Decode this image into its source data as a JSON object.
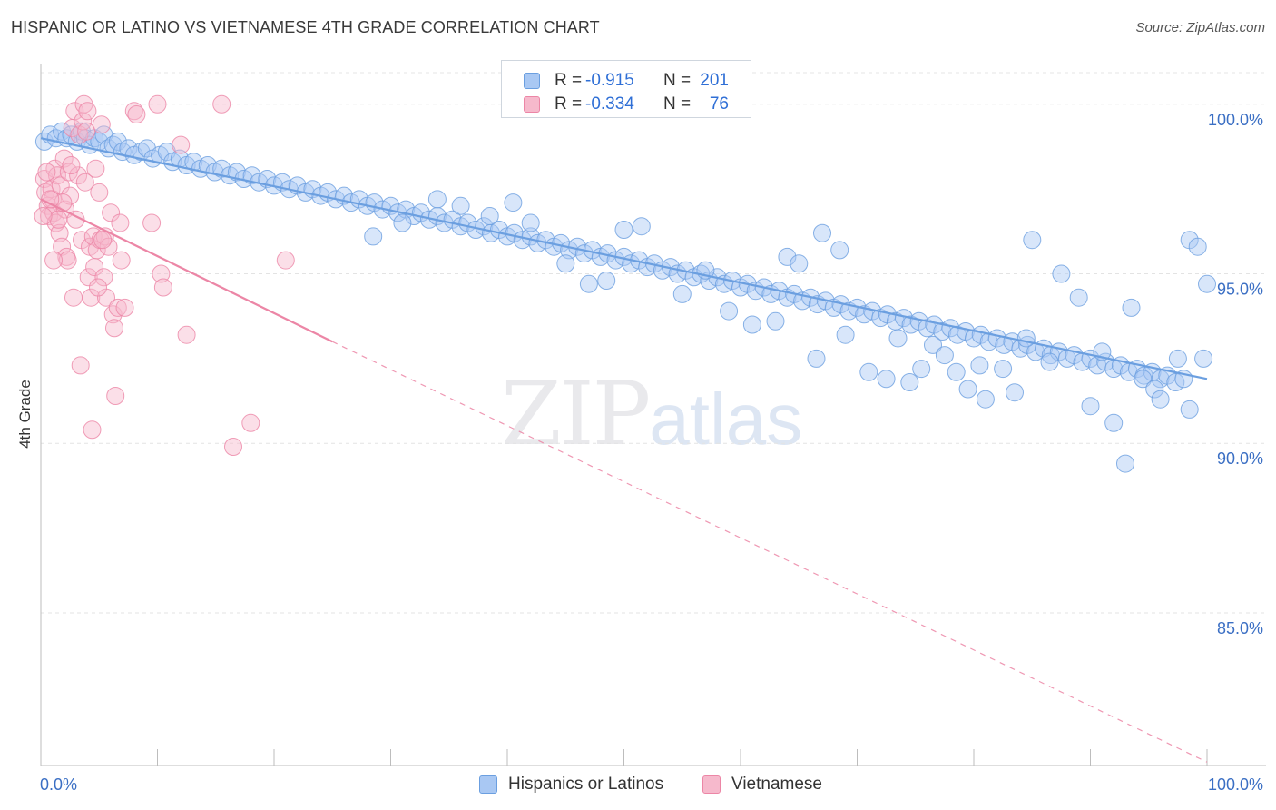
{
  "header": {
    "title": "HISPANIC OR LATINO VS VIETNAMESE 4TH GRADE CORRELATION CHART",
    "source": "Source: ZipAtlas.com"
  },
  "watermark": {
    "zip": "ZIP",
    "atlas": "atlas"
  },
  "legend": {
    "rows": [
      {
        "r_label": "R =",
        "r_value": "-0.915",
        "n_label": "N =",
        "n_value": "201",
        "color": "#a9c8f3",
        "stroke": "#6b9fe0"
      },
      {
        "r_label": "R =",
        "r_value": "-0.334",
        "n_label": "N =",
        "n_value": "76",
        "color": "#f6b9cc",
        "stroke": "#ec86a6"
      }
    ]
  },
  "bottom_legend": [
    {
      "label": "Hispanics or Latinos",
      "color": "#a9c8f3",
      "stroke": "#6b9fe0"
    },
    {
      "label": "Vietnamese",
      "color": "#f6b9cc",
      "stroke": "#ec86a6"
    }
  ],
  "chart_data": {
    "type": "scatter",
    "title": "HISPANIC OR LATINO VS VIETNAMESE 4TH GRADE CORRELATION CHART",
    "xlabel": "",
    "ylabel": "4th Grade",
    "xlim": [
      0,
      100
    ],
    "ylim": [
      80.5,
      101.2
    ],
    "x_tick_labels": [
      "0.0%",
      "100.0%"
    ],
    "y_ticks": [
      85,
      90,
      95,
      100
    ],
    "y_tick_labels": [
      "85.0%",
      "90.0%",
      "95.0%",
      "100.0%"
    ],
    "grid": true,
    "series": [
      {
        "name": "Hispanics or Latinos",
        "color": "#6b9fe0",
        "fill": "#a9c8f3",
        "trend": {
          "x": [
            0,
            100
          ],
          "y": [
            99.0,
            91.9
          ],
          "dashed_to": null
        },
        "points": [
          [
            0.3,
            98.9
          ],
          [
            0.8,
            99.1
          ],
          [
            1.3,
            99.0
          ],
          [
            1.8,
            99.2
          ],
          [
            2.2,
            99.0
          ],
          [
            2.6,
            99.1
          ],
          [
            3.1,
            98.9
          ],
          [
            3.5,
            99.2
          ],
          [
            3.8,
            99.0
          ],
          [
            4.2,
            98.8
          ],
          [
            4.6,
            99.0
          ],
          [
            5.0,
            98.9
          ],
          [
            5.4,
            99.1
          ],
          [
            5.8,
            98.7
          ],
          [
            6.2,
            98.8
          ],
          [
            6.6,
            98.9
          ],
          [
            7.0,
            98.6
          ],
          [
            7.5,
            98.7
          ],
          [
            8.0,
            98.5
          ],
          [
            8.6,
            98.6
          ],
          [
            9.1,
            98.7
          ],
          [
            9.6,
            98.4
          ],
          [
            10.2,
            98.5
          ],
          [
            10.8,
            98.6
          ],
          [
            11.3,
            98.3
          ],
          [
            11.9,
            98.4
          ],
          [
            12.5,
            98.2
          ],
          [
            13.1,
            98.3
          ],
          [
            13.7,
            98.1
          ],
          [
            14.3,
            98.2
          ],
          [
            14.9,
            98.0
          ],
          [
            15.5,
            98.1
          ],
          [
            16.2,
            97.9
          ],
          [
            16.8,
            98.0
          ],
          [
            17.4,
            97.8
          ],
          [
            18.1,
            97.9
          ],
          [
            18.7,
            97.7
          ],
          [
            19.4,
            97.8
          ],
          [
            20.0,
            97.6
          ],
          [
            20.7,
            97.7
          ],
          [
            21.3,
            97.5
          ],
          [
            22.0,
            97.6
          ],
          [
            22.7,
            97.4
          ],
          [
            23.3,
            97.5
          ],
          [
            24.0,
            97.3
          ],
          [
            24.6,
            97.4
          ],
          [
            25.3,
            97.2
          ],
          [
            26.0,
            97.3
          ],
          [
            26.6,
            97.1
          ],
          [
            27.3,
            97.2
          ],
          [
            28.0,
            97.0
          ],
          [
            28.6,
            97.1
          ],
          [
            29.3,
            96.9
          ],
          [
            30.0,
            97.0
          ],
          [
            30.6,
            96.8
          ],
          [
            31.3,
            96.9
          ],
          [
            32.0,
            96.7
          ],
          [
            32.6,
            96.8
          ],
          [
            33.3,
            96.6
          ],
          [
            34.0,
            96.7
          ],
          [
            34.6,
            96.5
          ],
          [
            35.3,
            96.6
          ],
          [
            36.0,
            96.4
          ],
          [
            36.6,
            96.5
          ],
          [
            37.3,
            96.3
          ],
          [
            38.0,
            96.4
          ],
          [
            38.6,
            96.2
          ],
          [
            39.3,
            96.3
          ],
          [
            40.0,
            96.1
          ],
          [
            40.6,
            96.2
          ],
          [
            41.3,
            96.0
          ],
          [
            42.0,
            96.1
          ],
          [
            42.6,
            95.9
          ],
          [
            43.3,
            96.0
          ],
          [
            44.0,
            95.8
          ],
          [
            44.6,
            95.9
          ],
          [
            45.3,
            95.7
          ],
          [
            46.0,
            95.8
          ],
          [
            46.6,
            95.6
          ],
          [
            47.3,
            95.7
          ],
          [
            48.0,
            95.5
          ],
          [
            48.6,
            95.6
          ],
          [
            49.3,
            95.4
          ],
          [
            50.0,
            95.5
          ],
          [
            50.6,
            95.3
          ],
          [
            51.3,
            95.4
          ],
          [
            52.0,
            95.2
          ],
          [
            52.6,
            95.3
          ],
          [
            53.3,
            95.1
          ],
          [
            54.0,
            95.2
          ],
          [
            54.6,
            95.0
          ],
          [
            55.3,
            95.1
          ],
          [
            56.0,
            94.9
          ],
          [
            56.6,
            95.0
          ],
          [
            57.3,
            94.8
          ],
          [
            58.0,
            94.9
          ],
          [
            58.6,
            94.7
          ],
          [
            59.3,
            94.8
          ],
          [
            60.0,
            94.6
          ],
          [
            60.6,
            94.7
          ],
          [
            61.3,
            94.5
          ],
          [
            62.0,
            94.6
          ],
          [
            62.6,
            94.4
          ],
          [
            63.3,
            94.5
          ],
          [
            64.0,
            94.3
          ],
          [
            64.6,
            94.4
          ],
          [
            65.3,
            94.2
          ],
          [
            66.0,
            94.3
          ],
          [
            66.6,
            94.1
          ],
          [
            67.3,
            94.2
          ],
          [
            68.0,
            94.0
          ],
          [
            68.6,
            94.1
          ],
          [
            69.3,
            93.9
          ],
          [
            70.0,
            94.0
          ],
          [
            70.6,
            93.8
          ],
          [
            71.3,
            93.9
          ],
          [
            72.0,
            93.7
          ],
          [
            72.6,
            93.8
          ],
          [
            73.3,
            93.6
          ],
          [
            74.0,
            93.7
          ],
          [
            74.6,
            93.5
          ],
          [
            75.3,
            93.6
          ],
          [
            76.0,
            93.4
          ],
          [
            76.6,
            93.5
          ],
          [
            77.3,
            93.3
          ],
          [
            78.0,
            93.4
          ],
          [
            78.6,
            93.2
          ],
          [
            79.3,
            93.3
          ],
          [
            80.0,
            93.1
          ],
          [
            80.6,
            93.2
          ],
          [
            81.3,
            93.0
          ],
          [
            82.0,
            93.1
          ],
          [
            82.6,
            92.9
          ],
          [
            83.3,
            93.0
          ],
          [
            84.0,
            92.8
          ],
          [
            84.6,
            92.9
          ],
          [
            85.3,
            92.7
          ],
          [
            86.0,
            92.8
          ],
          [
            86.6,
            92.6
          ],
          [
            87.3,
            92.7
          ],
          [
            88.0,
            92.5
          ],
          [
            88.6,
            92.6
          ],
          [
            89.3,
            92.4
          ],
          [
            90.0,
            92.5
          ],
          [
            90.6,
            92.3
          ],
          [
            91.3,
            92.4
          ],
          [
            92.0,
            92.2
          ],
          [
            92.6,
            92.3
          ],
          [
            93.3,
            92.1
          ],
          [
            94.0,
            92.2
          ],
          [
            94.6,
            92.0
          ],
          [
            95.3,
            92.1
          ],
          [
            96.0,
            91.9
          ],
          [
            96.6,
            92.0
          ],
          [
            97.3,
            91.8
          ],
          [
            98.0,
            91.9
          ],
          [
            28.5,
            96.1
          ],
          [
            31.0,
            96.5
          ],
          [
            34.0,
            97.2
          ],
          [
            36.0,
            97.0
          ],
          [
            38.5,
            96.7
          ],
          [
            40.5,
            97.1
          ],
          [
            42.0,
            96.5
          ],
          [
            45.0,
            95.3
          ],
          [
            47.0,
            94.7
          ],
          [
            48.5,
            94.8
          ],
          [
            50.0,
            96.3
          ],
          [
            51.5,
            96.4
          ],
          [
            55.0,
            94.4
          ],
          [
            57.0,
            95.1
          ],
          [
            59.0,
            93.9
          ],
          [
            61.0,
            93.5
          ],
          [
            63.0,
            93.6
          ],
          [
            64.0,
            95.5
          ],
          [
            65.0,
            95.3
          ],
          [
            66.5,
            92.5
          ],
          [
            67.0,
            96.2
          ],
          [
            68.5,
            95.7
          ],
          [
            69.0,
            93.2
          ],
          [
            71.0,
            92.1
          ],
          [
            72.5,
            91.9
          ],
          [
            73.5,
            93.1
          ],
          [
            74.5,
            91.8
          ],
          [
            75.5,
            92.2
          ],
          [
            76.5,
            92.9
          ],
          [
            77.5,
            92.6
          ],
          [
            78.5,
            92.1
          ],
          [
            79.5,
            91.6
          ],
          [
            80.5,
            92.3
          ],
          [
            81.0,
            91.3
          ],
          [
            82.5,
            92.2
          ],
          [
            83.5,
            91.5
          ],
          [
            84.5,
            93.1
          ],
          [
            85.0,
            96.0
          ],
          [
            86.5,
            92.4
          ],
          [
            87.5,
            95.0
          ],
          [
            89.0,
            94.3
          ],
          [
            90.0,
            91.1
          ],
          [
            91.0,
            92.7
          ],
          [
            92.0,
            90.6
          ],
          [
            93.5,
            94.0
          ],
          [
            94.5,
            91.9
          ],
          [
            95.5,
            91.6
          ],
          [
            96.0,
            91.3
          ],
          [
            97.5,
            92.5
          ],
          [
            98.5,
            91.0
          ],
          [
            98.5,
            96.0
          ],
          [
            99.2,
            95.8
          ],
          [
            100.0,
            94.7
          ],
          [
            99.7,
            92.5
          ],
          [
            93.0,
            89.4
          ]
        ]
      },
      {
        "name": "Vietnamese",
        "color": "#ec86a6",
        "fill": "#f6b9cc",
        "trend": {
          "x": [
            0,
            25
          ],
          "y": [
            97.2,
            93.0
          ],
          "dashed_to": [
            100,
            80.6
          ]
        },
        "points": [
          [
            0.3,
            97.8
          ],
          [
            0.4,
            97.4
          ],
          [
            0.6,
            97.0
          ],
          [
            0.7,
            96.7
          ],
          [
            0.9,
            97.5
          ],
          [
            1.0,
            97.2
          ],
          [
            1.1,
            96.8
          ],
          [
            1.2,
            98.1
          ],
          [
            1.3,
            96.5
          ],
          [
            1.4,
            97.9
          ],
          [
            1.6,
            96.2
          ],
          [
            1.7,
            97.6
          ],
          [
            1.8,
            95.8
          ],
          [
            2.0,
            98.4
          ],
          [
            2.1,
            96.9
          ],
          [
            2.2,
            95.5
          ],
          [
            2.4,
            98.0
          ],
          [
            2.5,
            97.3
          ],
          [
            2.7,
            99.3
          ],
          [
            2.8,
            94.3
          ],
          [
            2.9,
            99.8
          ],
          [
            3.0,
            96.6
          ],
          [
            3.2,
            97.9
          ],
          [
            3.3,
            99.1
          ],
          [
            3.5,
            96.0
          ],
          [
            3.6,
            99.5
          ],
          [
            3.7,
            100.0
          ],
          [
            3.8,
            97.7
          ],
          [
            4.0,
            99.8
          ],
          [
            4.1,
            94.9
          ],
          [
            4.2,
            95.8
          ],
          [
            4.3,
            94.3
          ],
          [
            4.5,
            96.1
          ],
          [
            4.6,
            95.2
          ],
          [
            4.7,
            98.1
          ],
          [
            4.8,
            95.7
          ],
          [
            5.0,
            97.4
          ],
          [
            5.1,
            96.0
          ],
          [
            5.2,
            99.4
          ],
          [
            5.4,
            94.9
          ],
          [
            5.5,
            96.1
          ],
          [
            5.6,
            94.3
          ],
          [
            5.8,
            95.8
          ],
          [
            6.0,
            96.8
          ],
          [
            6.2,
            93.8
          ],
          [
            6.4,
            91.4
          ],
          [
            6.6,
            94.0
          ],
          [
            6.8,
            96.5
          ],
          [
            8.0,
            99.8
          ],
          [
            8.2,
            99.7
          ],
          [
            9.5,
            96.5
          ],
          [
            10.0,
            100.0
          ],
          [
            10.3,
            95.0
          ],
          [
            10.5,
            94.6
          ],
          [
            12.0,
            98.8
          ],
          [
            12.5,
            93.2
          ],
          [
            15.5,
            100.0
          ],
          [
            16.5,
            89.9
          ],
          [
            18.0,
            90.6
          ],
          [
            21.0,
            95.4
          ],
          [
            1.5,
            96.6
          ],
          [
            2.3,
            95.4
          ],
          [
            3.4,
            92.3
          ],
          [
            4.9,
            94.6
          ],
          [
            6.3,
            93.4
          ],
          [
            4.4,
            90.4
          ],
          [
            1.9,
            97.1
          ],
          [
            0.8,
            97.2
          ],
          [
            2.6,
            98.2
          ],
          [
            3.9,
            99.2
          ],
          [
            5.3,
            96.0
          ],
          [
            0.5,
            98.0
          ],
          [
            1.1,
            95.4
          ],
          [
            6.9,
            95.4
          ],
          [
            7.2,
            94.0
          ],
          [
            0.2,
            96.7
          ]
        ]
      }
    ]
  }
}
